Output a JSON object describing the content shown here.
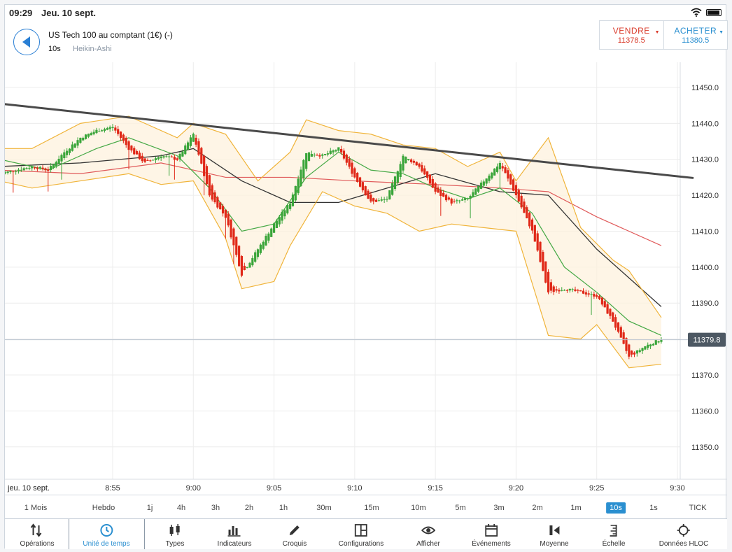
{
  "status_bar": {
    "time": "09:29",
    "date": "Jeu. 10 sept."
  },
  "header": {
    "instrument": "US Tech 100 au comptant (1€) (-)",
    "interval": "10s",
    "chart_type": "Heikin-Ashi",
    "sell": {
      "label": "VENDRE",
      "price": "11378.5"
    },
    "buy": {
      "label": "ACHETER",
      "price": "11380.5"
    }
  },
  "colors": {
    "accent": "#2a8fd0",
    "sell": "#d93a2a",
    "buy": "#2a8fd0",
    "candle_up": "#3aa53a",
    "candle_down": "#e02818"
  },
  "chart_data": {
    "type": "candlestick",
    "ylim": [
      11341,
      11457
    ],
    "yticks": [
      "11450.0",
      "11440.0",
      "11430.0",
      "11420.0",
      "11410.0",
      "11400.0",
      "11390.0",
      "11380.0",
      "11370.0",
      "11360.0",
      "11350.0"
    ],
    "xticks": [
      "8:55",
      "9:00",
      "9:05",
      "9:10",
      "9:15",
      "9:20",
      "9:25",
      "9:30"
    ],
    "date_label": "jeu. 10 sept.",
    "current_price": "11379.8",
    "trendline": {
      "from": [
        "8:48",
        11445.5
      ],
      "to": [
        "9:31",
        11424.8
      ]
    },
    "price_path": [
      [
        "8:48",
        11426
      ],
      [
        "8:49",
        11427
      ],
      [
        "8:50",
        11428
      ],
      [
        "8:51",
        11427
      ],
      [
        "8:52",
        11432
      ],
      [
        "8:53",
        11436
      ],
      [
        "8:54",
        11438
      ],
      [
        "8:55",
        11439
      ],
      [
        "8:56",
        11433
      ],
      [
        "8:57",
        11429
      ],
      [
        "8:58",
        11431
      ],
      [
        "8:59",
        11430
      ],
      [
        "9:00",
        11437
      ],
      [
        "9:01",
        11420
      ],
      [
        "9:02",
        11414
      ],
      [
        "9:03",
        11398
      ],
      [
        "9:04",
        11405
      ],
      [
        "9:05",
        11412
      ],
      [
        "9:06",
        11418
      ],
      [
        "9:07",
        11432
      ],
      [
        "9:08",
        11431
      ],
      [
        "9:09",
        11433
      ],
      [
        "9:10",
        11425
      ],
      [
        "9:11",
        11418
      ],
      [
        "9:12",
        11419
      ],
      [
        "9:13",
        11431
      ],
      [
        "9:14",
        11428
      ],
      [
        "9:15",
        11421
      ],
      [
        "9:16",
        11418
      ],
      [
        "9:17",
        11419
      ],
      [
        "9:18",
        11424
      ],
      [
        "9:19",
        11429
      ],
      [
        "9:20",
        11420
      ],
      [
        "9:21",
        11410
      ],
      [
        "9:22",
        11393
      ],
      [
        "9:23",
        11394
      ],
      [
        "9:24",
        11393
      ],
      [
        "9:25",
        11392
      ],
      [
        "9:26",
        11385
      ],
      [
        "9:27",
        11375
      ],
      [
        "9:28",
        11378
      ],
      [
        "9:29",
        11380
      ]
    ],
    "series": [
      {
        "name": "",
        "color": "#e05a5a",
        "values": [
          [
            "8:48",
            11427
          ],
          [
            "8:53",
            11426
          ],
          [
            "8:58",
            11429
          ],
          [
            "9:02",
            11425
          ],
          [
            "9:06",
            11425
          ],
          [
            "9:10",
            11424
          ],
          [
            "9:15",
            11423
          ],
          [
            "9:19",
            11422
          ],
          [
            "9:22",
            11421
          ],
          [
            "9:25",
            11414
          ],
          [
            "9:29",
            11406
          ]
        ]
      },
      {
        "name": "",
        "color": "#333333",
        "values": [
          [
            "8:48",
            11428
          ],
          [
            "8:53",
            11429
          ],
          [
            "8:58",
            11431
          ],
          [
            "9:00",
            11433
          ],
          [
            "9:03",
            11424
          ],
          [
            "9:06",
            11418
          ],
          [
            "9:09",
            11418
          ],
          [
            "9:12",
            11422
          ],
          [
            "9:15",
            11426
          ],
          [
            "9:19",
            11421
          ],
          [
            "9:22",
            11420
          ],
          [
            "9:25",
            11405
          ],
          [
            "9:29",
            11389
          ]
        ]
      },
      {
        "name": "",
        "color": "#44a844",
        "values": [
          [
            "8:48",
            11430
          ],
          [
            "8:51",
            11427
          ],
          [
            "8:54",
            11433
          ],
          [
            "8:56",
            11436
          ],
          [
            "8:59",
            11431
          ],
          [
            "9:01",
            11422
          ],
          [
            "9:03",
            11410
          ],
          [
            "9:05",
            11412
          ],
          [
            "9:07",
            11425
          ],
          [
            "9:09",
            11432
          ],
          [
            "9:11",
            11427
          ],
          [
            "9:13",
            11426
          ],
          [
            "9:15",
            11422
          ],
          [
            "9:17",
            11419
          ],
          [
            "9:19",
            11422
          ],
          [
            "9:21",
            11415
          ],
          [
            "9:23",
            11400
          ],
          [
            "9:25",
            11393
          ],
          [
            "9:27",
            11385
          ],
          [
            "9:29",
            11381
          ]
        ]
      },
      {
        "name": "",
        "color": "#f0b43a",
        "values": [
          [
            "8:48",
            11433
          ],
          [
            "8:50",
            11433
          ],
          [
            "8:53",
            11440
          ],
          [
            "8:56",
            11442
          ],
          [
            "8:59",
            11436
          ],
          [
            "9:00",
            11440
          ],
          [
            "9:02",
            11437
          ],
          [
            "9:04",
            11424
          ],
          [
            "9:06",
            11432
          ],
          [
            "9:07",
            11441
          ],
          [
            "9:09",
            11438
          ],
          [
            "9:11",
            11437
          ],
          [
            "9:13",
            11434
          ],
          [
            "9:15",
            11433
          ],
          [
            "9:17",
            11428
          ],
          [
            "9:19",
            11432
          ],
          [
            "9:20",
            11424
          ],
          [
            "9:22",
            11436
          ],
          [
            "9:24",
            11411
          ],
          [
            "9:26",
            11402
          ],
          [
            "9:27",
            11399
          ],
          [
            "9:29",
            11386
          ]
        ]
      },
      {
        "name": "",
        "color": "#f0b43a",
        "values": [
          [
            "8:48",
            11424
          ],
          [
            "8:50",
            11422
          ],
          [
            "8:53",
            11424
          ],
          [
            "8:56",
            11426
          ],
          [
            "8:58",
            11423
          ],
          [
            "9:00",
            11424
          ],
          [
            "9:02",
            11408
          ],
          [
            "9:03",
            11394
          ],
          [
            "9:04",
            11395
          ],
          [
            "9:05",
            11396
          ],
          [
            "9:06",
            11406
          ],
          [
            "9:08",
            11421
          ],
          [
            "9:10",
            11417
          ],
          [
            "9:12",
            11415
          ],
          [
            "9:14",
            11410
          ],
          [
            "9:16",
            11412
          ],
          [
            "9:18",
            11411
          ],
          [
            "9:20",
            11410
          ],
          [
            "9:22",
            11381
          ],
          [
            "9:24",
            11380
          ],
          [
            "9:25",
            11384
          ],
          [
            "9:27",
            11372
          ],
          [
            "9:29",
            11373
          ]
        ]
      }
    ]
  },
  "timeframes": [
    "1 Mois",
    "Hebdo",
    "1j",
    "4h",
    "3h",
    "2h",
    "1h",
    "30m",
    "15m",
    "10m",
    "5m",
    "3m",
    "2m",
    "1m",
    "10s",
    "1s",
    "TICK"
  ],
  "active_timeframe": "10s",
  "nav": [
    {
      "label": "Opérations",
      "icon": "arrows-up-down-icon"
    },
    {
      "label": "Unité de temps",
      "icon": "clock-icon"
    },
    {
      "label": "Types",
      "icon": "candle-types-icon"
    },
    {
      "label": "Indicateurs",
      "icon": "bar-chart-icon"
    },
    {
      "label": "Croquis",
      "icon": "pencil-icon"
    },
    {
      "label": "Configurations",
      "icon": "layout-icon"
    },
    {
      "label": "Afficher",
      "icon": "eye-icon"
    },
    {
      "label": "Événements",
      "icon": "calendar-icon"
    },
    {
      "label": "Moyenne",
      "icon": "average-icon"
    },
    {
      "label": "Échelle",
      "icon": "scale-icon"
    },
    {
      "label": "Données HLOC",
      "icon": "crosshair-icon"
    }
  ]
}
